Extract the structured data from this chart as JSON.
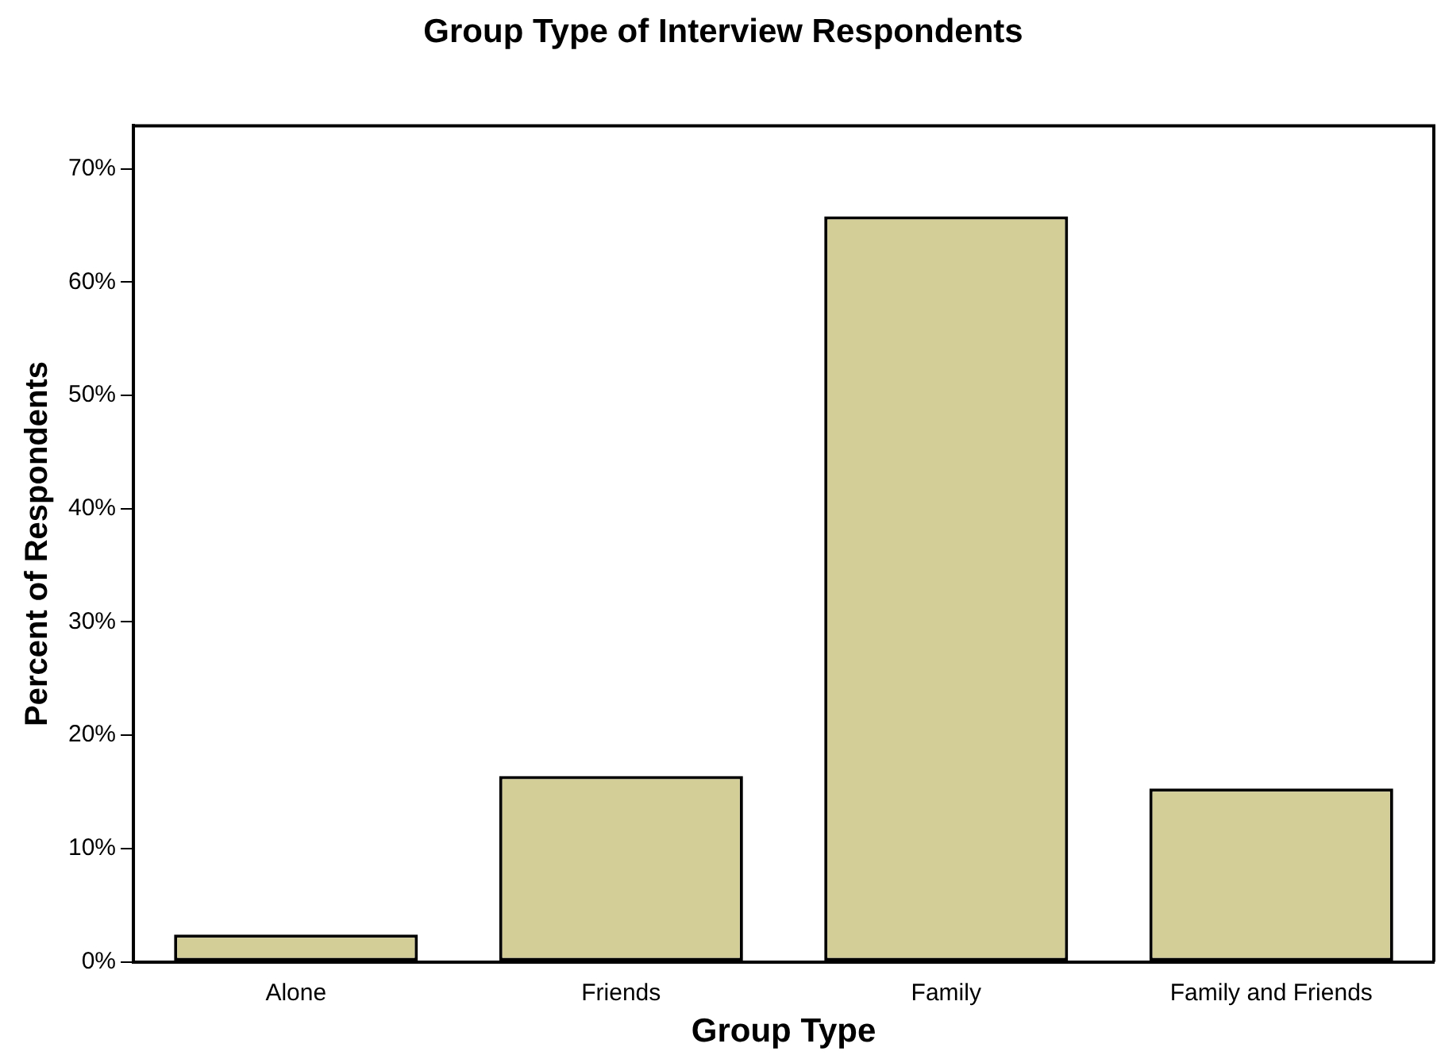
{
  "chart_data": {
    "type": "bar",
    "title": "Group Type of Interview Respondents",
    "xlabel": "Group Type",
    "ylabel": "Percent of Respondents",
    "categories": [
      "Alone",
      "Friends",
      "Family",
      "Family and Friends"
    ],
    "values": [
      2.4,
      16.4,
      65.8,
      15.3
    ],
    "color": "#d3cd98",
    "ylim": [
      0,
      73.8
    ],
    "yticks": [
      {
        "value": 0,
        "label": "0%"
      },
      {
        "value": 10,
        "label": "10%"
      },
      {
        "value": 20,
        "label": "20%"
      },
      {
        "value": 30,
        "label": "30%"
      },
      {
        "value": 40,
        "label": "40%"
      },
      {
        "value": 50,
        "label": "50%"
      },
      {
        "value": 60,
        "label": "60%"
      },
      {
        "value": 70,
        "label": "70%"
      }
    ],
    "grid": false,
    "legend": false
  }
}
